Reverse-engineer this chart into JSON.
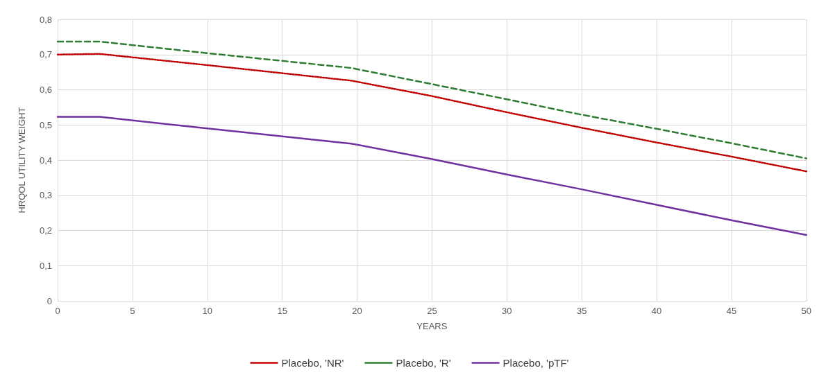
{
  "chart_data": {
    "type": "line",
    "xlabel": "YEARS",
    "ylabel": "HRQOL UTILITY WEIGHT",
    "xlim": [
      0,
      50
    ],
    "xticks": [
      0,
      5,
      10,
      15,
      20,
      25,
      30,
      35,
      40,
      45,
      50
    ],
    "ylim": [
      0,
      0.8
    ],
    "yticks": [
      0,
      {
        "value": 0.1,
        "label": "0,1"
      },
      {
        "value": 0.2,
        "label": "0,2"
      },
      {
        "value": 0.3,
        "label": "0,3"
      },
      {
        "value": 0.4,
        "label": "0,4"
      },
      {
        "value": 0.5,
        "label": "0,5"
      },
      {
        "value": 0.6,
        "label": "0,6"
      },
      {
        "value": 0.7,
        "label": "0,7"
      },
      {
        "value": 0.8,
        "label": "0,8"
      }
    ],
    "grid": true,
    "legend": "bottom",
    "marker": "none",
    "x": [
      0,
      2.8,
      10,
      19.6,
      25,
      30,
      35,
      40,
      45,
      50
    ],
    "series": [
      {
        "name": "Placebo, 'NR'",
        "color": "#c00000",
        "line_style": "dotted",
        "values": [
          0.7,
          0.702,
          0.67,
          0.626,
          0.582,
          0.536,
          0.492,
          0.45,
          0.41,
          0.368
        ]
      },
      {
        "name": "Placebo, 'R'",
        "color": "#2e7d32",
        "line_style": "dashed",
        "values": [
          0.737,
          0.737,
          0.704,
          0.662,
          0.616,
          0.573,
          0.529,
          0.489,
          0.448,
          0.405
        ]
      },
      {
        "name": "Placebo, 'pTF'",
        "color": "#7030a0",
        "line_style": "solid",
        "values": [
          0.523,
          0.523,
          0.49,
          0.447,
          0.403,
          0.359,
          0.317,
          0.273,
          0.229,
          0.187
        ]
      }
    ]
  }
}
